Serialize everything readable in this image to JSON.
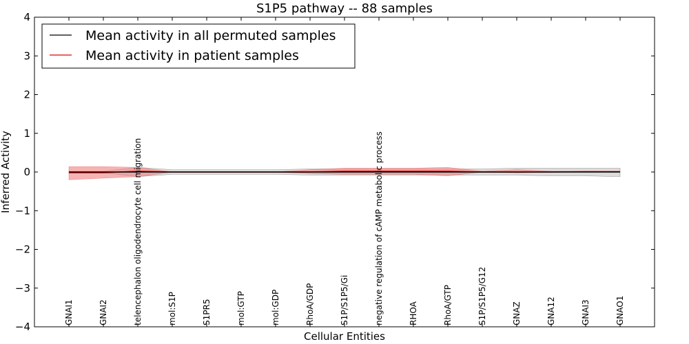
{
  "chart_data": {
    "type": "line",
    "title": "S1P5 pathway -- 88 samples",
    "xlabel": "Cellular Entities",
    "ylabel": "Inferred Activity",
    "ylim": [
      -4,
      4
    ],
    "yticks": [
      -4,
      -3,
      -2,
      -1,
      0,
      1,
      2,
      3,
      4
    ],
    "ytick_labels": [
      "−4",
      "−3",
      "−2",
      "−1",
      "0",
      "1",
      "2",
      "3",
      "4"
    ],
    "categories": [
      "GNAI1",
      "GNAI2",
      "telencephalon oligodendrocyte cell migration",
      "mol:S1P",
      "S1PR5",
      "mol:GTP",
      "mol:GDP",
      "RhoA/GDP",
      "S1P/S1P5/Gi",
      "negative regulation of cAMP metabolic process",
      "RHOA",
      "RhoA/GTP",
      "S1P/S1P5/G12",
      "GNAZ",
      "GNA12",
      "GNAI3",
      "GNAO1"
    ],
    "legend": {
      "location": "upper-left"
    },
    "series": [
      {
        "name": "Mean activity in all permuted samples",
        "color": "#000000",
        "band_color": "#bfbfbf",
        "values": [
          0,
          0,
          0,
          0,
          0,
          0,
          0,
          0,
          0,
          0,
          0,
          0,
          0,
          0,
          0,
          0,
          0
        ],
        "upper": [
          0.02,
          0.02,
          0.12,
          0.06,
          0.06,
          0.06,
          0.06,
          0.08,
          0.08,
          0.08,
          0.08,
          0.08,
          0.08,
          0.1,
          0.1,
          0.1,
          0.1
        ],
        "lower": [
          -0.02,
          -0.02,
          -0.12,
          -0.06,
          -0.06,
          -0.06,
          -0.06,
          -0.08,
          -0.08,
          -0.08,
          -0.08,
          -0.08,
          -0.08,
          -0.08,
          -0.1,
          -0.1,
          -0.12
        ]
      },
      {
        "name": "Mean activity in patient samples",
        "color": "#e00000",
        "band_color": "#f08080",
        "values": [
          -0.02,
          -0.02,
          0.02,
          0,
          0,
          0,
          0,
          0,
          0.02,
          0.02,
          0.02,
          0.02,
          0,
          0,
          0,
          0.01,
          0.01
        ],
        "upper": [
          0.14,
          0.14,
          0.12,
          0,
          0,
          0,
          0,
          0.06,
          0.1,
          0.1,
          0.1,
          0.12,
          0.02,
          0.06,
          0.02,
          0.02,
          0.02
        ],
        "lower": [
          -0.2,
          -0.16,
          -0.12,
          0,
          0,
          0,
          0,
          -0.04,
          -0.06,
          -0.06,
          -0.06,
          -0.1,
          0,
          -0.02,
          0,
          0,
          0
        ]
      }
    ]
  }
}
